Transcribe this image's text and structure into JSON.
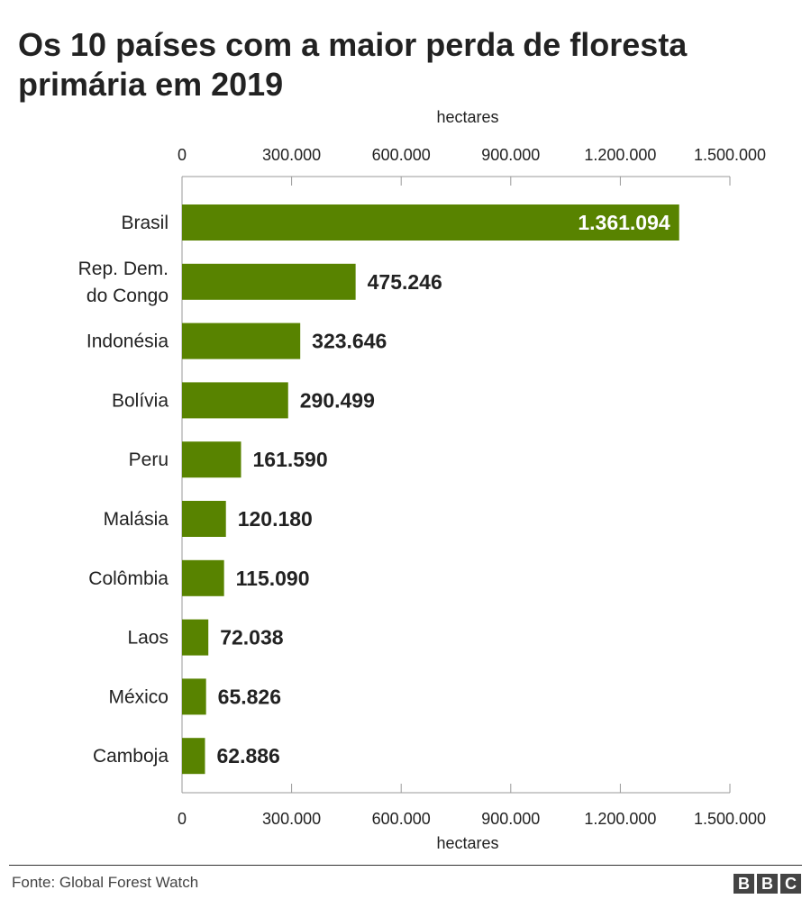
{
  "chart_data": {
    "type": "bar",
    "orientation": "horizontal",
    "title": "Os 10 países com a maior perda de floresta primária em 2019",
    "xlabel": "hectares",
    "categories": [
      "Brasil",
      "Rep. Dem. do Congo",
      "Indonésia",
      "Bolívia",
      "Peru",
      "Malásia",
      "Colômbia",
      "Laos",
      "México",
      "Camboja"
    ],
    "category_lines": [
      [
        "Brasil"
      ],
      [
        "Rep. Dem.",
        "do Congo"
      ],
      [
        "Indonésia"
      ],
      [
        "Bolívia"
      ],
      [
        "Peru"
      ],
      [
        "Malásia"
      ],
      [
        "Colômbia"
      ],
      [
        "Laos"
      ],
      [
        "México"
      ],
      [
        "Camboja"
      ]
    ],
    "values": [
      1361094,
      475246,
      323646,
      290499,
      161590,
      120180,
      115090,
      72038,
      65826,
      62886
    ],
    "value_labels": [
      "1.361.094",
      "475.246",
      "323.646",
      "290.499",
      "161.590",
      "120.180",
      "115.090",
      "72.038",
      "65.826",
      "62.886"
    ],
    "xlim": [
      0,
      1500000
    ],
    "ticks": [
      0,
      300000,
      600000,
      900000,
      1200000,
      1500000
    ],
    "tick_labels": [
      "0",
      "300.000",
      "600.000",
      "900.000",
      "1.200.000",
      "1.500.000"
    ],
    "axes": [
      "top",
      "bottom"
    ],
    "grid": false,
    "bar_color": "#588300"
  },
  "source": "Fonte: Global Forest Watch",
  "logo": [
    "B",
    "B",
    "C"
  ]
}
